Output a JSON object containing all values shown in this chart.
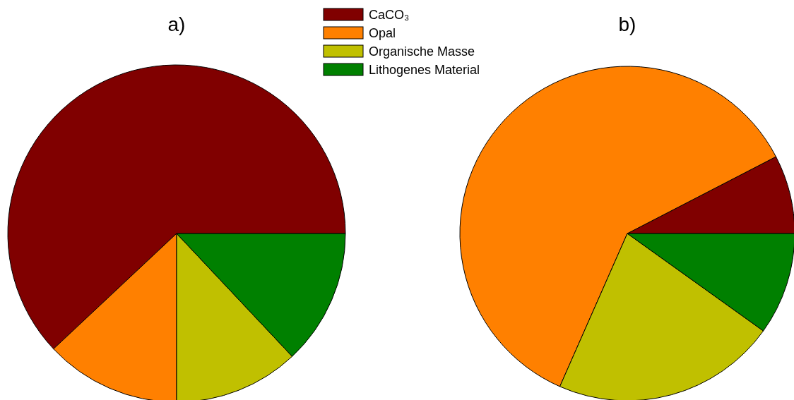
{
  "chart_data": [
    {
      "type": "pie",
      "title": "a)",
      "categories": [
        "CaCO₃",
        "Opal",
        "Organische Masse",
        "Lithogenes Material"
      ],
      "values": [
        62,
        13,
        12,
        13
      ],
      "colors": [
        "#800000",
        "#ff8000",
        "#c0c000",
        "#008000"
      ],
      "legend": "top right"
    },
    {
      "type": "pie",
      "title": "b)",
      "categories": [
        null,
        null,
        null,
        null
      ],
      "values": [
        7.6,
        60.8,
        21.7,
        9.9
      ],
      "colors": [
        "#800000",
        "#ff8000",
        "#c0c000",
        "#008000"
      ],
      "legend": false
    }
  ]
}
